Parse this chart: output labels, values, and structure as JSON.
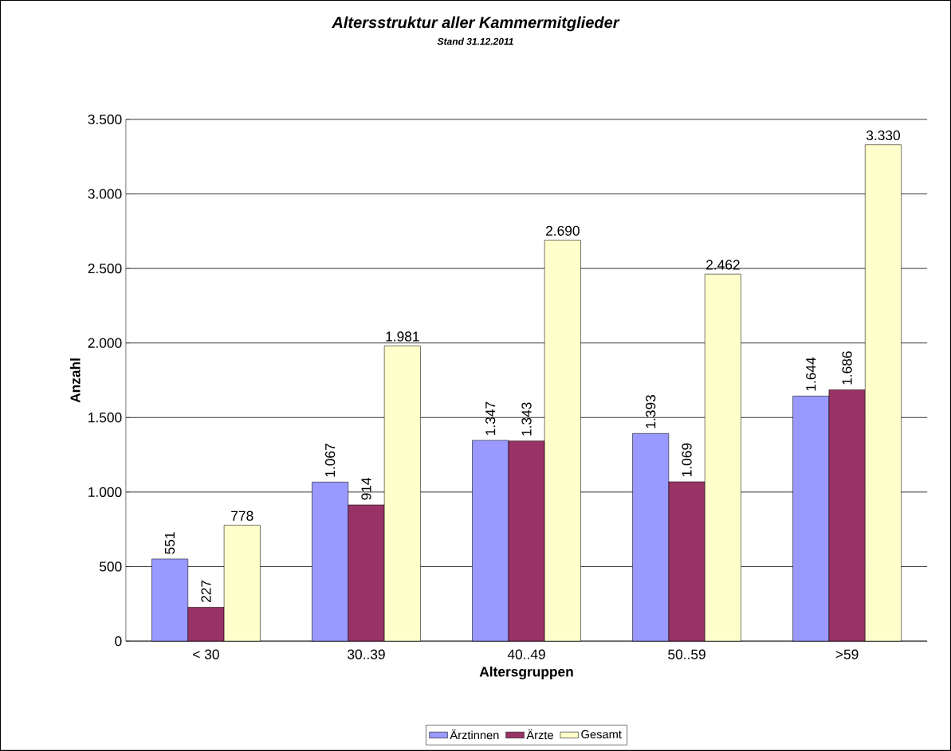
{
  "chart_data": {
    "type": "bar",
    "title": "Altersstruktur aller Kammermitglieder",
    "subtitle": "Stand 31.12.2011",
    "xlabel": "Altersgruppen",
    "ylabel": "Anzahl",
    "categories": [
      "< 30",
      "30..39",
      "40..49",
      "50..59",
      ">59"
    ],
    "series": [
      {
        "name": "Ärztinnen",
        "color": "#9999ff",
        "values": [
          551,
          1067,
          1347,
          1393,
          1644
        ],
        "value_labels": [
          "551",
          "1.067",
          "1.347",
          "1.393",
          "1.644"
        ]
      },
      {
        "name": "Ärzte",
        "color": "#993366",
        "values": [
          227,
          914,
          1343,
          1069,
          1686
        ],
        "value_labels": [
          "227",
          "914",
          "1.343",
          "1.069",
          "1.686"
        ]
      },
      {
        "name": "Gesamt",
        "color": "#ffffcc",
        "values": [
          778,
          1981,
          2690,
          2462,
          3330
        ],
        "value_labels": [
          "778",
          "1.981",
          "2.690",
          "2.462",
          "3.330"
        ]
      }
    ],
    "ylim": [
      0,
      3500
    ],
    "yticks": [
      0,
      {
        "value": 500,
        "label": "500"
      },
      {
        "value": 1000,
        "label": "1.000"
      },
      {
        "value": 1500,
        "label": "1.500"
      },
      {
        "value": 2000,
        "label": "2.000"
      },
      {
        "value": 2500,
        "label": "2.500"
      },
      {
        "value": 3000,
        "label": "3.000"
      },
      {
        "value": 3500,
        "label": "3.500"
      }
    ],
    "grid": "y",
    "legend": "bottom"
  }
}
